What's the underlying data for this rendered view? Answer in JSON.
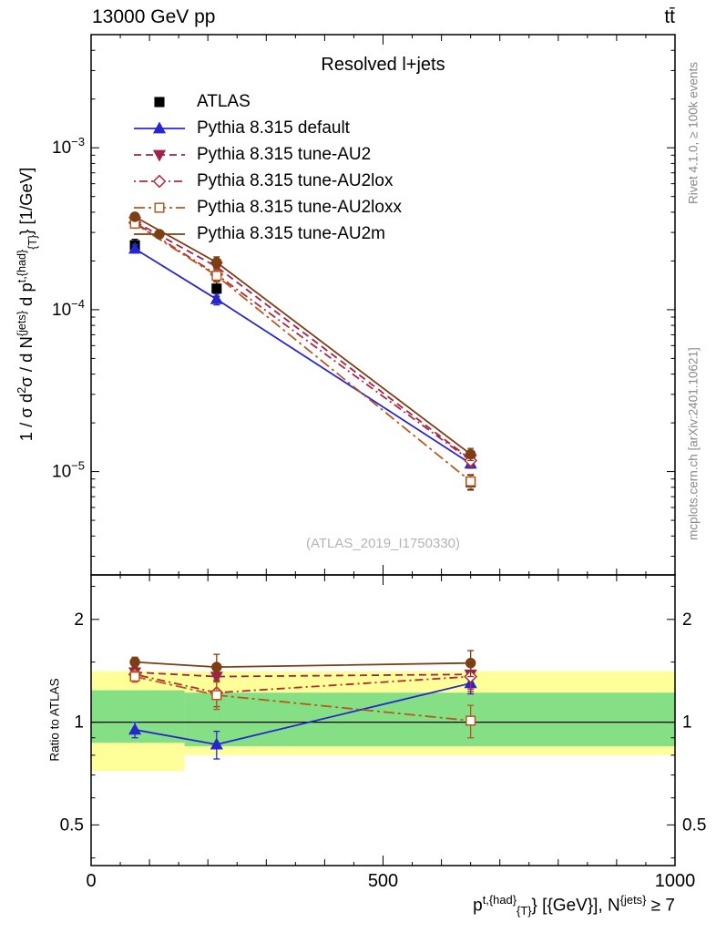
{
  "header": {
    "left": "13000 GeV pp",
    "right": "tt̄"
  },
  "watermarks": {
    "rivet": "Rivet 4.1.0, ≥ 100k events",
    "mcplots": "mcplots.cern.ch [arXiv:2401.10621]",
    "analysis": "(ATLAS_2019_I1750330)"
  },
  "labels": {
    "y": {
      "p1": "1 / σ d",
      "p2": "2",
      "p3": "σ / d N",
      "p4": "{jets}",
      "p5": " d p",
      "p6": "t,{had}",
      "p7": "{T}",
      "p8": "} [1/GeV]"
    },
    "ratio_y": "Ratio to ATLAS",
    "x": {
      "p1": "p",
      "p2": "t,{had}",
      "p3": "{T}",
      "p4": "} [{GeV}], N",
      "p5": "{jets}",
      "p6": " ≥ 7"
    }
  },
  "main_panel": {
    "title": "Resolved l+jets"
  },
  "chart_data": [
    {
      "panel": "main",
      "type": "line",
      "title": "Resolved l+jets",
      "xlabel": "p^{t,{had}}_{T} [{GeV}], N^{jets} ≥ 7",
      "ylabel": "1 / σ d²σ / d N^{jets} d p^{t,{had}}_{T} [1/GeV]",
      "yscale": "log",
      "grid": false,
      "legend_position": "upper-left",
      "xlim": [
        0,
        1000
      ],
      "ylim": [
        2.3e-06,
        0.005
      ],
      "yticks_labeled": [
        1e-05,
        0.0001,
        0.001
      ],
      "x": [
        75,
        215,
        650
      ],
      "series": [
        {
          "name": "ATLAS",
          "color": "#000000",
          "marker": "square",
          "fill": true,
          "line": "none",
          "values": [
            0.00025,
            0.000135,
            8.6e-06
          ],
          "errors": [
            2.2e-05,
            1.4e-05,
            9e-07
          ]
        },
        {
          "name": "Pythia 8.315 default",
          "color": "#2727cf",
          "marker": "triangle-up",
          "fill": true,
          "line": "solid",
          "values": [
            0.000238,
            0.000116,
            1.12e-05
          ],
          "errors": [
            1.4e-05,
            9e-06,
            7e-07
          ]
        },
        {
          "name": "Pythia 8.315 tune-AU2",
          "color": "#a02050",
          "marker": "triangle-down",
          "fill": true,
          "line": "dashed",
          "values": [
            0.00035,
            0.000184,
            1.19e-05
          ],
          "errors": [
            1.6e-05,
            1.5e-05,
            1e-06
          ]
        },
        {
          "name": "Pythia 8.315 tune-AU2lox",
          "color": "#b02838",
          "marker": "diamond",
          "fill": false,
          "line": "dashdot2",
          "values": [
            0.000345,
            0.000165,
            1.17e-05
          ],
          "errors": [
            1.6e-05,
            1.4e-05,
            1e-06
          ]
        },
        {
          "name": "Pythia 8.315 tune-AU2loxx",
          "color": "#b55a1e",
          "marker": "square",
          "fill": false,
          "line": "dashdot",
          "values": [
            0.00034,
            0.000162,
            8.7e-06
          ],
          "errors": [
            1.6e-05,
            1.4e-05,
            9e-07
          ]
        },
        {
          "name": "Pythia 8.315 tune-AU2m",
          "color": "#7c3f14",
          "marker": "circle",
          "fill": true,
          "line": "solid",
          "values": [
            0.000375,
            0.000196,
            1.28e-05
          ],
          "errors": [
            1.7e-05,
            1.6e-05,
            1.1e-06
          ]
        }
      ]
    },
    {
      "panel": "ratio",
      "type": "line",
      "ylabel": "Ratio to ATLAS",
      "yscale": "log",
      "xlim": [
        0,
        1000
      ],
      "ylim": [
        0.38,
        2.7
      ],
      "yticks_labeled": [
        0.5,
        1,
        2
      ],
      "xticks_labeled": [
        0,
        500,
        1000
      ],
      "reference_line": 1,
      "x": [
        75,
        215,
        650
      ],
      "bands": [
        {
          "name": "yellow-outer",
          "color": "#ffff99",
          "segments": [
            {
              "x0": 0,
              "x1": 160,
              "lo": 0.72,
              "hi": 1.41
            },
            {
              "x0": 160,
              "x1": 1000,
              "lo": 0.8,
              "hi": 1.41
            }
          ]
        },
        {
          "name": "green-inner",
          "color": "#85e085",
          "segments": [
            {
              "x0": 0,
              "x1": 160,
              "lo": 0.87,
              "hi": 1.24
            },
            {
              "x0": 160,
              "x1": 1000,
              "lo": 0.85,
              "hi": 1.22
            }
          ]
        }
      ],
      "series": [
        {
          "name": "Pythia 8.315 default",
          "color": "#2727cf",
          "marker": "triangle-up",
          "fill": true,
          "line": "solid",
          "values": [
            0.95,
            0.86,
            1.3
          ],
          "errors": [
            0.05,
            0.08,
            0.09
          ]
        },
        {
          "name": "Pythia 8.315 tune-AU2",
          "color": "#a02050",
          "marker": "triangle-down",
          "fill": true,
          "line": "dashed",
          "values": [
            1.4,
            1.36,
            1.38
          ],
          "errors": [
            0.05,
            0.12,
            0.13
          ]
        },
        {
          "name": "Pythia 8.315 tune-AU2lox",
          "color": "#b02838",
          "marker": "diamond",
          "fill": false,
          "line": "dashdot2",
          "values": [
            1.38,
            1.22,
            1.36
          ],
          "errors": [
            0.05,
            0.11,
            0.13
          ]
        },
        {
          "name": "Pythia 8.315 tune-AU2loxx",
          "color": "#b55a1e",
          "marker": "square",
          "fill": false,
          "line": "dashdot",
          "values": [
            1.36,
            1.2,
            1.01
          ],
          "errors": [
            0.05,
            0.11,
            0.11
          ]
        },
        {
          "name": "Pythia 8.315 tune-AU2m",
          "color": "#7c3f14",
          "marker": "circle",
          "fill": true,
          "line": "solid",
          "values": [
            1.5,
            1.45,
            1.49
          ],
          "errors": [
            0.05,
            0.13,
            0.13
          ]
        }
      ]
    }
  ]
}
